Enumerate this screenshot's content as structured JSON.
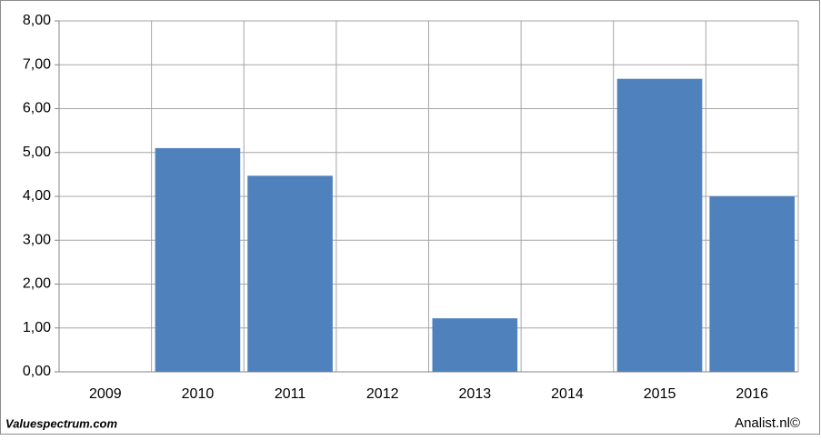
{
  "chart_data": {
    "type": "bar",
    "categories": [
      "2009",
      "2010",
      "2011",
      "2012",
      "2013",
      "2014",
      "2015",
      "2016"
    ],
    "values": [
      null,
      5.1,
      4.47,
      null,
      1.22,
      null,
      6.68,
      4.0
    ],
    "color": "#4f81bd",
    "ylim": [
      0,
      8
    ],
    "yticks": [
      {
        "value": 0,
        "label": "0,00"
      },
      {
        "value": 1,
        "label": "1,00"
      },
      {
        "value": 2,
        "label": "2,00"
      },
      {
        "value": 3,
        "label": "3,00"
      },
      {
        "value": 4,
        "label": "4,00"
      },
      {
        "value": 5,
        "label": "5,00"
      },
      {
        "value": 6,
        "label": "6,00"
      },
      {
        "value": 7,
        "label": "7,00"
      },
      {
        "value": 8,
        "label": "8,00"
      }
    ],
    "grid": true
  },
  "footer": {
    "left": "Valuespectrum.com",
    "right": "Analist.nl©"
  }
}
